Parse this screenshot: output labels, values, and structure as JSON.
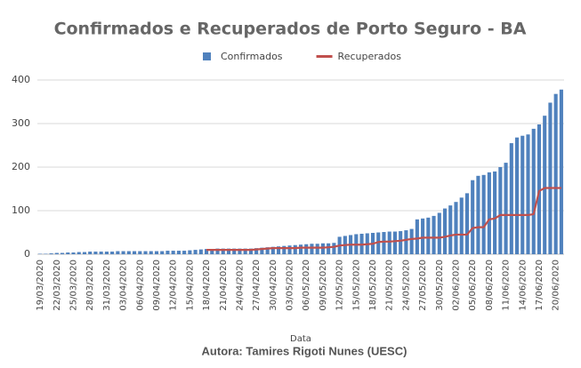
{
  "chart_data": {
    "type": "bar_line",
    "title": "Confirmados e Recuperados de Porto Seguro - BA",
    "x_label": "Data",
    "footer": "Autora: Tamires Rigoti Nunes (UESC)",
    "categories": [
      "19/03/2020",
      null,
      null,
      "22/03/2020",
      null,
      null,
      "25/03/2020",
      null,
      null,
      "28/03/2020",
      null,
      null,
      "31/03/2020",
      null,
      null,
      "03/04/2020",
      null,
      null,
      "06/04/2020",
      null,
      null,
      "09/04/2020",
      null,
      null,
      "12/04/2020",
      null,
      null,
      "15/04/2020",
      null,
      null,
      "18/04/2020",
      null,
      null,
      "21/04/2020",
      null,
      null,
      "24/04/2020",
      null,
      null,
      "27/04/2020",
      null,
      null,
      "30/04/2020",
      null,
      null,
      "03/05/2020",
      null,
      null,
      "06/05/2020",
      null,
      null,
      "09/05/2020",
      null,
      null,
      "12/05/2020",
      null,
      null,
      "15/05/2020",
      null,
      null,
      "18/05/2020",
      null,
      null,
      "21/05/2020",
      null,
      null,
      "24/05/2020",
      null,
      null,
      "27/05/2020",
      null,
      null,
      "30/05/2020",
      null,
      null,
      "02/06/2020",
      null,
      null,
      "05/06/2020",
      null,
      null,
      "08/06/2020",
      null,
      null,
      "11/06/2020",
      null,
      null,
      "14/06/2020",
      null,
      null,
      "17/06/2020",
      null,
      null,
      "20/06/2020",
      null
    ],
    "series": [
      {
        "name": "Confirmados",
        "type": "bar",
        "color": "#4f81bd",
        "values": [
          1,
          1,
          2,
          3,
          3,
          4,
          4,
          5,
          5,
          6,
          6,
          6,
          6,
          6,
          7,
          7,
          7,
          7,
          7,
          7,
          7,
          7,
          7,
          8,
          8,
          8,
          8,
          9,
          10,
          11,
          12,
          12,
          13,
          13,
          13,
          13,
          13,
          13,
          13,
          14,
          15,
          16,
          17,
          18,
          19,
          20,
          21,
          22,
          23,
          24,
          24,
          25,
          25,
          26,
          40,
          42,
          44,
          46,
          47,
          48,
          49,
          50,
          51,
          52,
          52,
          53,
          55,
          58,
          80,
          82,
          84,
          88,
          95,
          105,
          112,
          120,
          130,
          140,
          170,
          180,
          182,
          188,
          190,
          200,
          210,
          255,
          268,
          272,
          275,
          288,
          298,
          318,
          348,
          368,
          378
        ]
      },
      {
        "name": "Recuperados",
        "type": "line",
        "color": "#c0504d",
        "values": [
          null,
          null,
          null,
          null,
          null,
          null,
          null,
          null,
          null,
          null,
          null,
          null,
          null,
          null,
          null,
          null,
          null,
          null,
          null,
          null,
          null,
          null,
          null,
          null,
          null,
          null,
          null,
          null,
          null,
          null,
          10,
          10,
          10,
          10,
          10,
          10,
          10,
          10,
          10,
          11,
          12,
          13,
          14,
          14,
          14,
          14,
          14,
          15,
          15,
          15,
          15,
          15,
          16,
          17,
          20,
          21,
          22,
          22,
          22,
          23,
          24,
          28,
          29,
          29,
          30,
          31,
          33,
          35,
          36,
          38,
          38,
          38,
          38,
          40,
          43,
          45,
          45,
          45,
          60,
          62,
          62,
          80,
          82,
          90,
          90,
          90,
          90,
          90,
          90,
          92,
          145,
          152,
          152,
          152,
          152
        ]
      }
    ],
    "ylim": [
      0,
      400
    ],
    "yticks": [
      0,
      100,
      200,
      300,
      400
    ],
    "grid": true,
    "legend": "top"
  }
}
